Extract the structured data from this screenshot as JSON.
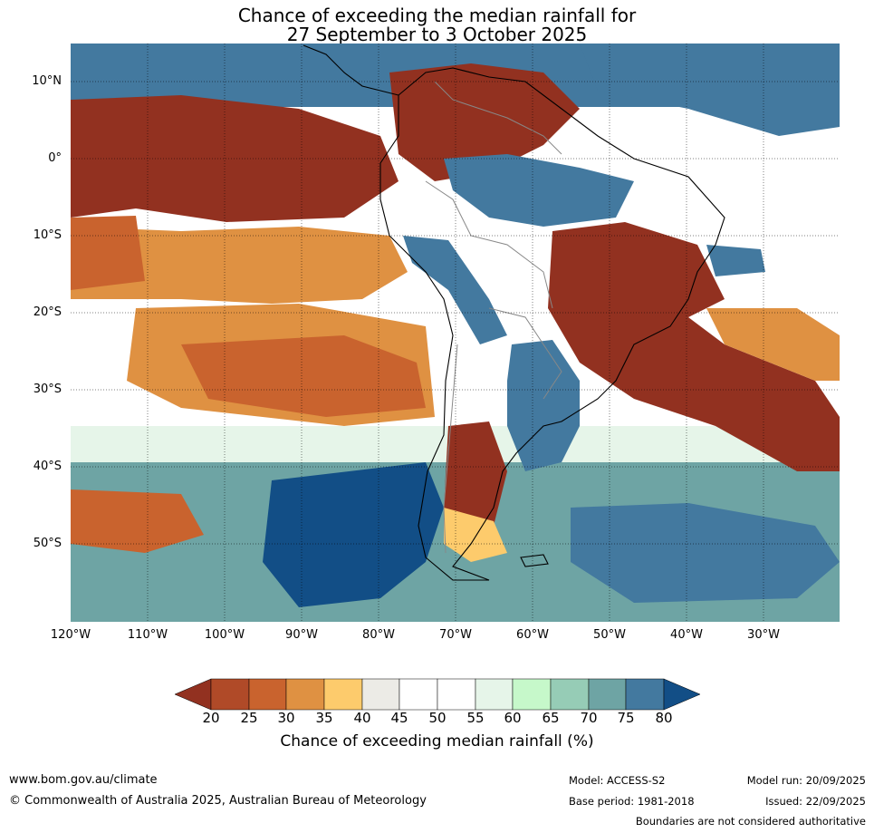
{
  "title": {
    "line1": "Chance of exceeding the median rainfall for",
    "line2": "27 September to 3 October 2025"
  },
  "map": {
    "lat_labels": [
      "10°N",
      "0°",
      "10°S",
      "20°S",
      "30°S",
      "40°S",
      "50°S"
    ],
    "lon_labels": [
      "120°W",
      "110°W",
      "100°W",
      "90°W",
      "80°W",
      "70°W",
      "60°W",
      "50°W",
      "40°W",
      "30°W"
    ],
    "palette": {
      "20": "#923120",
      "25": "#b04a28",
      "30": "#c9632e",
      "35": "#df9142",
      "40": "#fdcb6c",
      "45": "#ecebe6",
      "50": "#ffffff",
      "55": "#ffffff",
      "60": "#e6f5e9",
      "65": "#c6f8ca",
      "70": "#96ccb6",
      "75": "#6ea4a4",
      "80": "#43799f",
      "85": "#124e86"
    }
  },
  "colorbar": {
    "ticks": [
      "20",
      "25",
      "30",
      "35",
      "40",
      "45",
      "50",
      "55",
      "60",
      "65",
      "70",
      "75",
      "80"
    ],
    "colors": [
      "#923120",
      "#b04a28",
      "#c9632e",
      "#df9142",
      "#fdcb6c",
      "#ecebe6",
      "#ffffff",
      "#ffffff",
      "#e6f5e9",
      "#c6f8ca",
      "#96ccb6",
      "#6ea4a4",
      "#43799f",
      "#124e86"
    ],
    "label": "Chance of exceeding median rainfall (%)"
  },
  "footer": {
    "url": "www.bom.gov.au/climate",
    "copyright": "© Commonwealth of Australia 2025, Australian Bureau of Meteorology",
    "model": "Model: ACCESS-S2",
    "base_period": "Base period: 1981-2018",
    "model_run": "Model run: 20/09/2025",
    "issued": "Issued: 22/09/2025",
    "disclaimer": "Boundaries are not considered authoritative"
  }
}
